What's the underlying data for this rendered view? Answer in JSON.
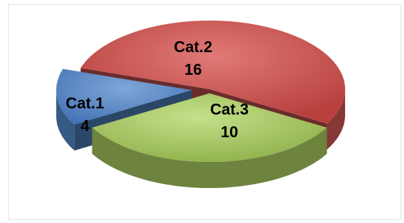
{
  "chart_data": {
    "type": "pie",
    "style": "3d-exploded",
    "categories": [
      "Cat.1",
      "Cat.2",
      "Cat.3"
    ],
    "values": [
      4,
      16,
      10
    ],
    "colors": [
      "#4f81bd",
      "#c0504d",
      "#9bbb59"
    ],
    "legend": "none",
    "data_labels": "category-and-value"
  }
}
